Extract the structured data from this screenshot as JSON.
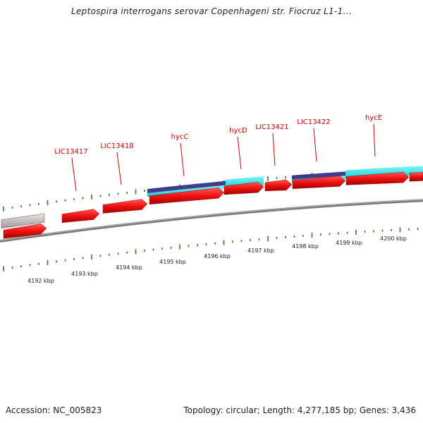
{
  "header": {
    "title": "Leptospira interrogans serovar Copenhageni str. Fiocruz L1-1..."
  },
  "footer": {
    "accession": "Accession: NC_005823",
    "topology": "Topology: circular; Length: 4,277,185 bp; Genes: 3,436"
  },
  "colors": {
    "gene_fill": "#ee1111",
    "gene_dark": "#a00000",
    "pseudo_gray": "#c0c0c0",
    "bar_cyan": "#22e5e5",
    "bar_navy": "#3d3d8c",
    "tick_green": "#2e7d1a",
    "backbone_gray": "#7a7a7a",
    "label_red": "#cc0000"
  },
  "gene_labels": [
    "LIC13417",
    "LIC13418",
    "hycC",
    "hycD",
    "LIC13421",
    "LIC13422",
    "hycE"
  ],
  "kbp_labels": [
    "4192 kbp",
    "4193 kbp",
    "4194 kbp",
    "4195 kbp",
    "4196 kbp",
    "4197 kbp",
    "4198 kbp",
    "4199 kbp",
    "4200 kbp"
  ]
}
